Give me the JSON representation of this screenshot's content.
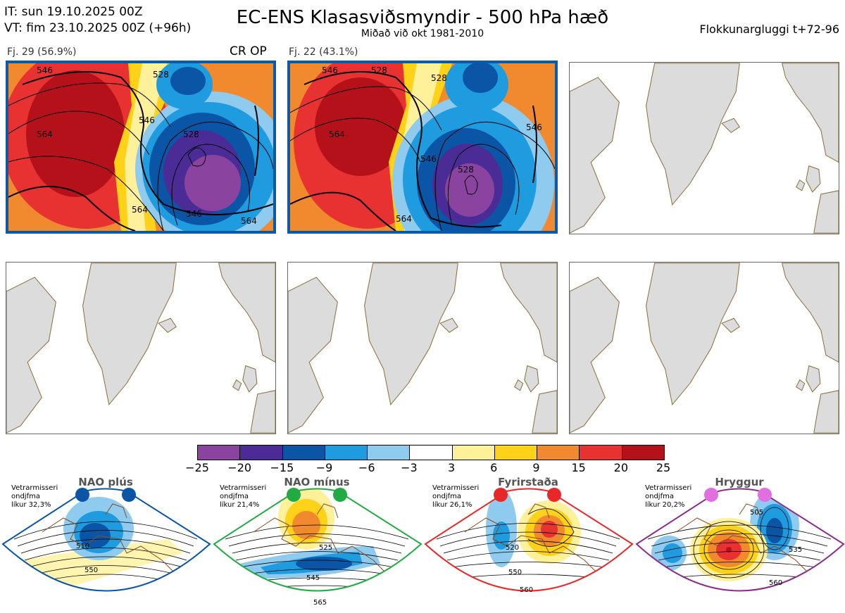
{
  "header": {
    "init_time": "IT: sun 19.10.2025 00Z",
    "valid_time": "VT: fim 23.10.2025 00Z  (+96h)",
    "title": "EC-ENS Klasasviðsmyndir - 500 hPa hæð",
    "subtitle": "Miðað við okt 1981-2010",
    "cluster_window": "Flokkunargluggi t+72-96"
  },
  "panels": [
    {
      "label": "Fj. 29 (56.9%)",
      "badge": "CR OP",
      "contours": [
        "546",
        "528",
        "564",
        "546",
        "564",
        "564",
        "546",
        "528"
      ]
    },
    {
      "label": "Fj. 22 (43.1%)",
      "badge": "",
      "contours": [
        "546",
        "528",
        "528",
        "564",
        "546",
        "546",
        "528",
        "564"
      ]
    }
  ],
  "colorbar": {
    "ticks": [
      "−25",
      "−20",
      "−15",
      "−9",
      "−6",
      "−3",
      "3",
      "6",
      "9",
      "15",
      "20",
      "25"
    ],
    "colors": [
      "#8a44a0",
      "#4b2c96",
      "#0a55a6",
      "#1f9be0",
      "#8fcaef",
      "#ffffff",
      "#fff09a",
      "#ffd21a",
      "#f18a2e",
      "#e83232",
      "#b5111a"
    ]
  },
  "regimes": [
    {
      "name": "NAO plús",
      "note": [
        "Vetrarmisseri",
        "ondjfma",
        "líkur 32,3%"
      ],
      "color": "#0a55a6",
      "contours": [
        "510",
        "550"
      ]
    },
    {
      "name": "NAO mínus",
      "note": [
        "Vetrarmisseri",
        "ondjfma",
        "líkur 21,4%"
      ],
      "color": "#22aa44",
      "contours": [
        "525",
        "545",
        "565"
      ]
    },
    {
      "name": "Fyrirstaða",
      "note": [
        "Vetrarmisseri",
        "ondjfma",
        "líkur 26,1%"
      ],
      "color": "#e82828",
      "contours": [
        "520",
        "550",
        "560"
      ]
    },
    {
      "name": "Hryggur",
      "note": [
        "Vetrarmisseri",
        "ondjfma",
        "líkur 20,2%"
      ],
      "color": "#e070e0",
      "contours": [
        "505",
        "535",
        "560"
      ]
    }
  ]
}
